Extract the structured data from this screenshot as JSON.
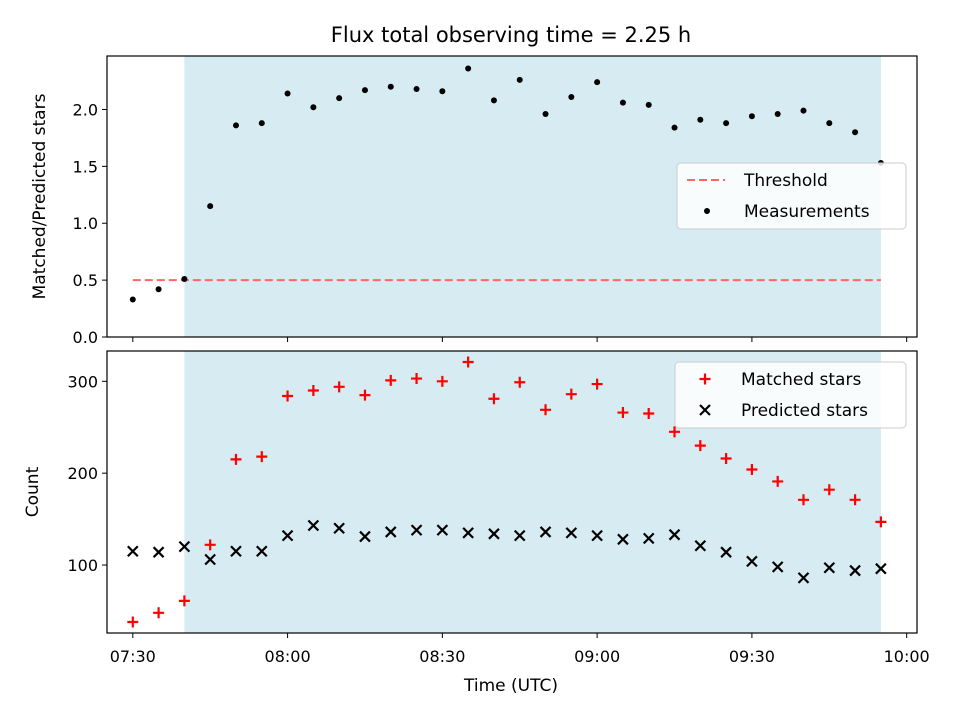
{
  "figure": {
    "title": "Flux total observing time = 2.25 h",
    "xlabel": "Time (UTC)"
  },
  "chart_data": [
    {
      "type": "scatter",
      "panel": "top",
      "ylabel": "Matched/Predicted stars",
      "xlim": [
        "07:25",
        "10:02"
      ],
      "ylim": [
        0,
        2.47
      ],
      "yticks": [
        "0.0",
        "0.5",
        "1.0",
        "1.5",
        "2.0"
      ],
      "shaded_span": [
        "07:40",
        "09:55"
      ],
      "shade_color": "#add8e6",
      "legend_position": "center-right",
      "series": [
        {
          "name": "Threshold",
          "kind": "dashed-line",
          "color": "#ff6666",
          "x": [
            "07:30",
            "09:55"
          ],
          "y": [
            0.5,
            0.5
          ]
        },
        {
          "name": "Measurements",
          "kind": "points",
          "color": "#000000",
          "x": [
            "07:30",
            "07:35",
            "07:40",
            "07:45",
            "07:50",
            "07:55",
            "08:00",
            "08:05",
            "08:10",
            "08:15",
            "08:20",
            "08:25",
            "08:30",
            "08:35",
            "08:40",
            "08:45",
            "08:50",
            "08:55",
            "09:00",
            "09:05",
            "09:10",
            "09:15",
            "09:20",
            "09:25",
            "09:30",
            "09:35",
            "09:40",
            "09:45",
            "09:50",
            "09:55"
          ],
          "y": [
            0.33,
            0.42,
            0.51,
            1.15,
            1.86,
            1.88,
            2.14,
            2.02,
            2.1,
            2.17,
            2.2,
            2.18,
            2.16,
            2.36,
            2.08,
            2.26,
            1.96,
            2.11,
            2.24,
            2.06,
            2.04,
            1.84,
            1.91,
            1.88,
            1.94,
            1.96,
            1.99,
            1.88,
            1.8,
            1.53
          ]
        }
      ]
    },
    {
      "type": "scatter",
      "panel": "bottom",
      "ylabel": "Count",
      "xlim": [
        "07:25",
        "10:02"
      ],
      "ylim": [
        26,
        333
      ],
      "yticks": [
        "100",
        "200",
        "300"
      ],
      "xticks": [
        "07:30",
        "08:00",
        "08:30",
        "09:00",
        "09:30",
        "10:00"
      ],
      "shaded_span": [
        "07:40",
        "09:55"
      ],
      "shade_color": "#add8e6",
      "legend_position": "top-right",
      "series": [
        {
          "name": "Matched stars",
          "marker": "plus",
          "color": "#ff0000",
          "x": [
            "07:30",
            "07:35",
            "07:40",
            "07:45",
            "07:50",
            "07:55",
            "08:00",
            "08:05",
            "08:10",
            "08:15",
            "08:20",
            "08:25",
            "08:30",
            "08:35",
            "08:40",
            "08:45",
            "08:50",
            "08:55",
            "09:00",
            "09:05",
            "09:10",
            "09:15",
            "09:20",
            "09:25",
            "09:30",
            "09:35",
            "09:40",
            "09:45",
            "09:50",
            "09:55"
          ],
          "y": [
            38,
            48,
            61,
            122,
            215,
            218,
            284,
            290,
            294,
            285,
            301,
            303,
            300,
            321,
            281,
            299,
            269,
            286,
            297,
            266,
            265,
            245,
            230,
            216,
            204,
            191,
            171,
            182,
            171,
            147
          ]
        },
        {
          "name": "Predicted stars",
          "marker": "x",
          "color": "#000000",
          "x": [
            "07:30",
            "07:35",
            "07:40",
            "07:45",
            "07:50",
            "07:55",
            "08:00",
            "08:05",
            "08:10",
            "08:15",
            "08:20",
            "08:25",
            "08:30",
            "08:35",
            "08:40",
            "08:45",
            "08:50",
            "08:55",
            "09:00",
            "09:05",
            "09:10",
            "09:15",
            "09:20",
            "09:25",
            "09:30",
            "09:35",
            "09:40",
            "09:45",
            "09:50",
            "09:55"
          ],
          "y": [
            115,
            114,
            120,
            106,
            115,
            115,
            132,
            143,
            140,
            131,
            136,
            138,
            138,
            135,
            134,
            132,
            136,
            135,
            132,
            128,
            129,
            133,
            121,
            114,
            104,
            98,
            86,
            97,
            94,
            96
          ]
        }
      ]
    }
  ]
}
